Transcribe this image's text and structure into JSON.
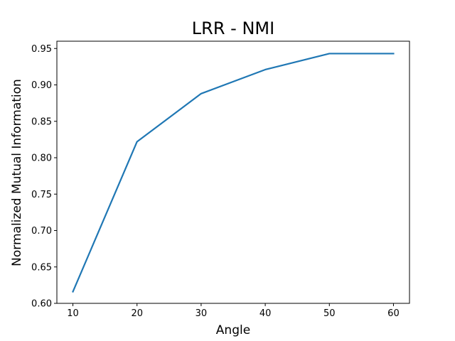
{
  "chart_data": {
    "type": "line",
    "title": "LRR - NMI",
    "xlabel": "Angle",
    "ylabel": "Normalized Mutual Information",
    "x": [
      10,
      20,
      30,
      40,
      50,
      60
    ],
    "series": [
      {
        "values": [
          0.616,
          0.822,
          0.888,
          0.921,
          0.943,
          0.943
        ],
        "color": "#1f77b4"
      }
    ],
    "xlim": [
      7.5,
      62.5
    ],
    "ylim": [
      0.6,
      0.96
    ],
    "xticks": [
      10,
      20,
      30,
      40,
      50,
      60
    ],
    "yticks": [
      0.6,
      0.65,
      0.7,
      0.75,
      0.8,
      0.85,
      0.9,
      0.95
    ],
    "ytick_labels": [
      "0.60",
      "0.65",
      "0.70",
      "0.75",
      "0.80",
      "0.85",
      "0.90",
      "0.95"
    ],
    "grid": false
  }
}
